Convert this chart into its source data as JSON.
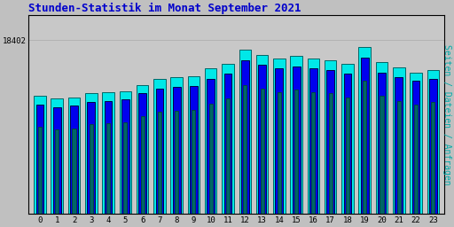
{
  "title": "Stunden-Statistik im Monat September 2021",
  "ylabel_right": "Seiten / Dateien / Anfragen",
  "ytick_label": "18402",
  "background_color": "#c0c0c0",
  "plot_bg_color": "#c8c8c8",
  "bar_colors": [
    "#00e8e8",
    "#0000ee",
    "#006666"
  ],
  "hours": [
    0,
    1,
    2,
    3,
    4,
    5,
    6,
    7,
    8,
    9,
    10,
    11,
    12,
    13,
    14,
    15,
    16,
    17,
    18,
    19,
    20,
    21,
    22,
    23
  ],
  "hits": [
    9500,
    9300,
    9400,
    9700,
    9800,
    9900,
    10400,
    10900,
    11000,
    11100,
    11700,
    12100,
    13200,
    12800,
    12500,
    12700,
    12500,
    12400,
    12100,
    13400,
    12200,
    11800,
    11400,
    11600
  ],
  "files": [
    8800,
    8600,
    8700,
    9000,
    9100,
    9200,
    9700,
    10100,
    10200,
    10300,
    10900,
    11300,
    12400,
    12000,
    11700,
    11900,
    11700,
    11600,
    11300,
    12600,
    11400,
    11000,
    10700,
    10900
  ],
  "pages": [
    7000,
    6800,
    6900,
    7200,
    7300,
    7400,
    7900,
    8200,
    8300,
    8400,
    8900,
    9300,
    10400,
    10100,
    9800,
    10000,
    9800,
    9700,
    9400,
    10700,
    9500,
    9100,
    8800,
    9000
  ],
  "title_color": "#0000cc",
  "title_fontsize": 9,
  "ylabel_right_color": "#00aaaa",
  "ytick_label_val": 14000,
  "border_color": "#000000",
  "ylim_max": 16000,
  "bar_width": 0.7,
  "ylabel_fontsize": 7
}
